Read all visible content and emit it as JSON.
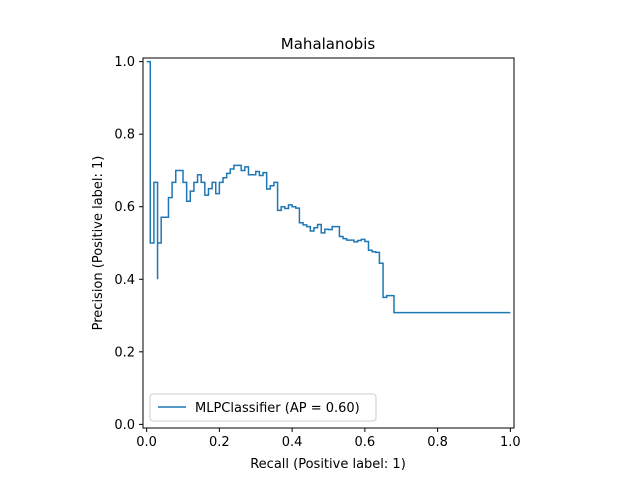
{
  "chart_data": {
    "type": "line",
    "title": "Mahalanobis",
    "xlabel": "Recall (Positive label: 1)",
    "ylabel": "Precision (Positive label: 1)",
    "xlim": [
      -0.01,
      1.01
    ],
    "ylim": [
      -0.01,
      1.01
    ],
    "xticks": [
      0.0,
      0.2,
      0.4,
      0.6,
      0.8,
      1.0
    ],
    "yticks": [
      0.0,
      0.2,
      0.4,
      0.6,
      0.8,
      1.0
    ],
    "xtick_labels": [
      "0.0",
      "0.2",
      "0.4",
      "0.6",
      "0.8",
      "1.0"
    ],
    "ytick_labels": [
      "0.0",
      "0.2",
      "0.4",
      "0.6",
      "0.8",
      "1.0"
    ],
    "grid": false,
    "legend_position": "lower-left",
    "line_color": "#1f77b4",
    "drawstyle": "steps-post",
    "series": [
      {
        "name": "MLPClassifier (AP = 0.60)",
        "x": [
          0.0,
          0.01,
          0.01,
          0.02,
          0.02,
          0.03,
          0.03,
          0.04,
          0.04,
          0.05,
          0.06,
          0.07,
          0.08,
          0.09,
          0.1,
          0.11,
          0.12,
          0.13,
          0.14,
          0.15,
          0.16,
          0.17,
          0.18,
          0.19,
          0.2,
          0.21,
          0.22,
          0.23,
          0.24,
          0.25,
          0.26,
          0.27,
          0.28,
          0.3,
          0.31,
          0.32,
          0.33,
          0.34,
          0.35,
          0.36,
          0.37,
          0.38,
          0.39,
          0.4,
          0.41,
          0.42,
          0.43,
          0.44,
          0.45,
          0.46,
          0.47,
          0.48,
          0.49,
          0.5,
          0.51,
          0.52,
          0.53,
          0.54,
          0.55,
          0.56,
          0.57,
          0.58,
          0.59,
          0.6,
          0.61,
          0.62,
          0.63,
          0.64,
          0.65,
          0.66,
          0.67,
          0.68,
          0.69,
          0.7,
          0.71,
          0.72,
          0.73,
          0.74,
          0.75,
          0.76,
          0.77,
          0.78,
          0.79,
          0.8,
          0.81,
          0.82,
          0.83,
          0.84,
          0.85,
          0.86,
          0.87,
          0.88,
          0.89,
          0.9,
          0.91,
          0.92,
          0.93,
          0.94,
          0.95,
          0.96,
          0.97,
          0.98,
          0.99,
          1.0
        ],
        "y": [
          1.0,
          1.0,
          0.5,
          0.667,
          0.667,
          0.4,
          0.5,
          0.5,
          0.571,
          0.571,
          0.625,
          0.667,
          0.7,
          0.7,
          0.667,
          0.615,
          0.643,
          0.667,
          0.688,
          0.667,
          0.632,
          0.65,
          0.667,
          0.636,
          0.667,
          0.68,
          0.692,
          0.704,
          0.714,
          0.714,
          0.7,
          0.71,
          0.688,
          0.697,
          0.686,
          0.694,
          0.649,
          0.658,
          0.667,
          0.59,
          0.6,
          0.595,
          0.605,
          0.6,
          0.596,
          0.556,
          0.55,
          0.545,
          0.533,
          0.542,
          0.551,
          0.528,
          0.538,
          0.537,
          0.545,
          0.545,
          0.518,
          0.512,
          0.508,
          0.508,
          0.503,
          0.507,
          0.51,
          0.504,
          0.48,
          0.476,
          0.474,
          0.444,
          0.35,
          0.355,
          0.355,
          0.308,
          0.308,
          0.308,
          0.308,
          0.308,
          0.308,
          0.308,
          0.308,
          0.308,
          0.308,
          0.308,
          0.308,
          0.308,
          0.308,
          0.308,
          0.308,
          0.308,
          0.308,
          0.308,
          0.308,
          0.308,
          0.308,
          0.308,
          0.308,
          0.308,
          0.308,
          0.308,
          0.308,
          0.308,
          0.308,
          0.308,
          0.308,
          0.308
        ]
      }
    ]
  }
}
